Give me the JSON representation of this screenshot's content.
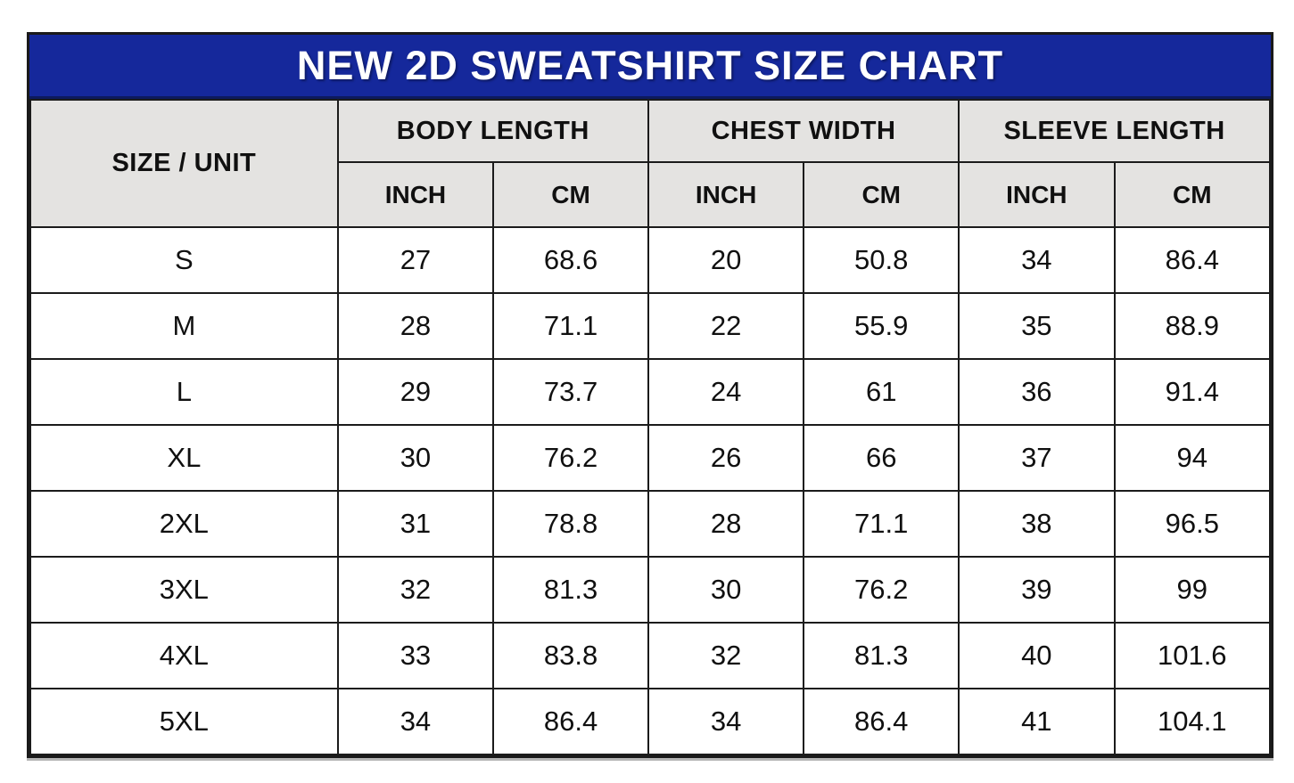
{
  "colors": {
    "title_bg": "#15289B",
    "title_text": "#FFFFFF",
    "header_bg": "#E4E3E1",
    "cell_bg": "#FFFFFF",
    "border": "#1B1B1B"
  },
  "chart_data": {
    "type": "table",
    "title": "NEW 2D SWEATSHIRT SIZE CHART",
    "corner_header": "SIZE / UNIT",
    "column_groups": [
      {
        "label": "BODY LENGTH",
        "units": [
          "INCH",
          "CM"
        ]
      },
      {
        "label": "CHEST WIDTH",
        "units": [
          "INCH",
          "CM"
        ]
      },
      {
        "label": "SLEEVE LENGTH",
        "units": [
          "INCH",
          "CM"
        ]
      }
    ],
    "rows": [
      {
        "size": "S",
        "values": [
          "27",
          "68.6",
          "20",
          "50.8",
          "34",
          "86.4"
        ]
      },
      {
        "size": "M",
        "values": [
          "28",
          "71.1",
          "22",
          "55.9",
          "35",
          "88.9"
        ]
      },
      {
        "size": "L",
        "values": [
          "29",
          "73.7",
          "24",
          "61",
          "36",
          "91.4"
        ]
      },
      {
        "size": "XL",
        "values": [
          "30",
          "76.2",
          "26",
          "66",
          "37",
          "94"
        ]
      },
      {
        "size": "2XL",
        "values": [
          "31",
          "78.8",
          "28",
          "71.1",
          "38",
          "96.5"
        ]
      },
      {
        "size": "3XL",
        "values": [
          "32",
          "81.3",
          "30",
          "76.2",
          "39",
          "99"
        ]
      },
      {
        "size": "4XL",
        "values": [
          "33",
          "83.8",
          "32",
          "81.3",
          "40",
          "101.6"
        ]
      },
      {
        "size": "5XL",
        "values": [
          "34",
          "86.4",
          "34",
          "86.4",
          "41",
          "104.1"
        ]
      }
    ]
  }
}
